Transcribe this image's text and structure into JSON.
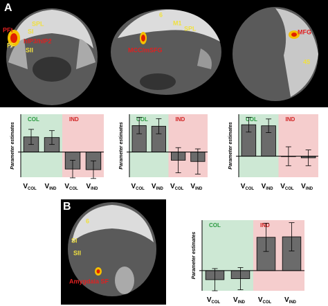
{
  "panel_labels": [
    "A",
    "B"
  ],
  "brain_labels": {
    "coronal_a": [
      "PFt",
      "SI",
      "SPL",
      "PF",
      "SII",
      "hIP3/hIP2"
    ],
    "sagittal": [
      "6",
      "M1",
      "SPL",
      "MCC/mSFG"
    ],
    "axial": [
      "MFG",
      "45"
    ],
    "coronal_b": [
      "6",
      "SI",
      "SII",
      "Amygdala SF"
    ]
  },
  "chart_data": [
    {
      "type": "bar",
      "y_label": "Parameter estimates",
      "categories": [
        "V",
        "V",
        "V",
        "V"
      ],
      "category_subscripts": [
        "COL",
        "IND",
        "COL",
        "IND"
      ],
      "groups": [
        {
          "label": "COL",
          "color": "#cde8d4"
        },
        {
          "label": "IND",
          "color": "#f5cdcd"
        }
      ],
      "values": [
        2.4,
        2.3,
        -2.7,
        -2.8
      ],
      "errors": [
        1.2,
        1.1,
        1.4,
        1.4
      ],
      "color": "#6b6b6b",
      "ylim": [
        -4,
        6
      ]
    },
    {
      "type": "bar",
      "y_label": "Parameter estimates",
      "categories": [
        "V",
        "V",
        "V",
        "V"
      ],
      "category_subscripts": [
        "COL",
        "IND",
        "COL",
        "IND"
      ],
      "groups": [
        {
          "label": "COL",
          "color": "#cde8d4"
        },
        {
          "label": "IND",
          "color": "#f5cdcd"
        }
      ],
      "values": [
        4.2,
        4.1,
        -1.3,
        -1.5
      ],
      "errors": [
        1.3,
        1.2,
        2.0,
        2.0
      ],
      "color": "#6b6b6b",
      "ylim": [
        -4,
        6
      ]
    },
    {
      "type": "bar",
      "y_label": "Parameter estimates",
      "categories": [
        "V",
        "V",
        "V",
        "V"
      ],
      "category_subscripts": [
        "COL",
        "IND",
        "COL",
        "IND"
      ],
      "groups": [
        {
          "label": "COL",
          "color": "#cde8d4"
        },
        {
          "label": "IND",
          "color": "#f5cdcd"
        }
      ],
      "values": [
        6.0,
        5.8,
        0.0,
        -0.3
      ],
      "errors": [
        1.4,
        1.3,
        1.8,
        1.5
      ],
      "color": "#6b6b6b",
      "ylim": [
        -4,
        8
      ]
    },
    {
      "type": "bar",
      "y_label": "Parameter estimates",
      "categories": [
        "V",
        "V",
        "V",
        "V"
      ],
      "category_subscripts": [
        "COL",
        "IND",
        "COL",
        "IND"
      ],
      "groups": [
        {
          "label": "COL",
          "color": "#cde8d4"
        },
        {
          "label": "IND",
          "color": "#f5cdcd"
        }
      ],
      "values": [
        -1.8,
        -1.6,
        6.6,
        6.7
      ],
      "errors": [
        2.2,
        2.2,
        2.8,
        2.8
      ],
      "color": "#6b6b6b",
      "ylim": [
        -4,
        10
      ]
    }
  ]
}
